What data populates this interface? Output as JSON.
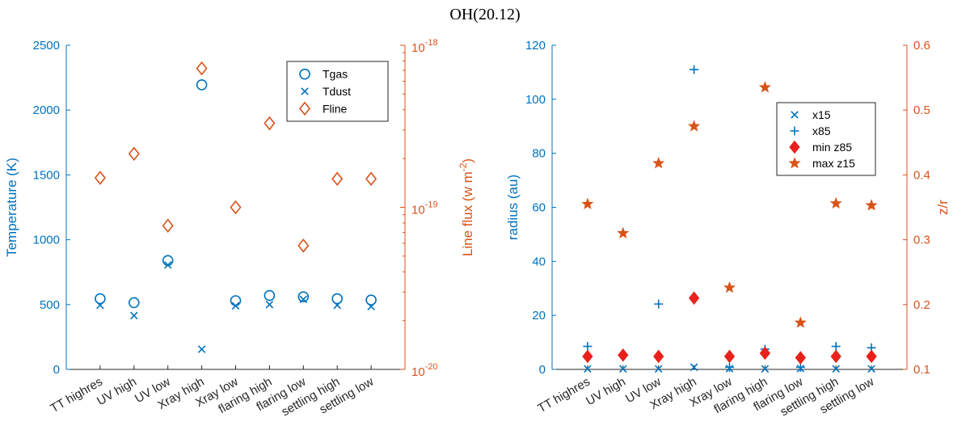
{
  "figure_title": "OH(20.12)",
  "colors": {
    "blue": "#0072BD",
    "orange": "#D95319",
    "red": "#E8221B",
    "axis": "#262626"
  },
  "chart_data": [
    {
      "type": "scatter",
      "categories": [
        "TT highres",
        "UV high",
        "UV low",
        "Xray high",
        "Xray low",
        "flaring high",
        "flaring low",
        "settling high",
        "settling low"
      ],
      "left_axis": {
        "label": "Temperature (K)",
        "lim": [
          0,
          2500
        ],
        "ticks": [
          0,
          500,
          1000,
          1500,
          2000,
          2500
        ],
        "tick_labels": [
          "0",
          "500",
          "1000",
          "1500",
          "2000",
          "2500"
        ]
      },
      "right_axis": {
        "label_main": "Line flux (w m",
        "label_sup": "-2",
        "label_end": ")",
        "scale": "log",
        "lim": [
          1e-20,
          1e-18
        ],
        "ticks": [
          1e-20,
          1e-19,
          1e-18
        ],
        "tick_base": [
          "10",
          "10",
          "10"
        ],
        "tick_exp": [
          "-20",
          "-19",
          "-18"
        ]
      },
      "series": [
        {
          "name": "Tgas",
          "axis": "left",
          "marker": "circle",
          "values": [
            545,
            515,
            840,
            2195,
            530,
            570,
            560,
            545,
            535
          ]
        },
        {
          "name": "Tdust",
          "axis": "left",
          "marker": "x",
          "values": [
            495,
            415,
            805,
            155,
            490,
            500,
            540,
            495,
            485
          ]
        },
        {
          "name": "Fline",
          "axis": "right",
          "marker": "diamond",
          "values": [
            1.52e-19,
            2.14e-19,
            7.7e-20,
            7.2e-19,
            1e-19,
            3.3e-19,
            5.8e-20,
            1.5e-19,
            1.5e-19
          ]
        }
      ],
      "legend_position": "top-right"
    },
    {
      "type": "scatter",
      "categories": [
        "TT highres",
        "UV high",
        "UV low",
        "Xray high",
        "Xray low",
        "flaring high",
        "flaring low",
        "settling high",
        "settling low"
      ],
      "left_axis": {
        "label": "radius (au)",
        "lim": [
          0,
          120
        ],
        "ticks": [
          0,
          20,
          40,
          60,
          80,
          100,
          120
        ],
        "tick_labels": [
          "0",
          "20",
          "40",
          "60",
          "80",
          "100",
          "120"
        ]
      },
      "right_axis": {
        "label": "z/r",
        "lim": [
          0.1,
          0.6
        ],
        "ticks": [
          0.1,
          0.2,
          0.3,
          0.4,
          0.5,
          0.6
        ],
        "tick_labels": [
          "0.1",
          "0.2",
          "0.3",
          "0.4",
          "0.5",
          "0.6"
        ]
      },
      "series": [
        {
          "name": "x15",
          "axis": "left",
          "marker": "x",
          "values": [
            0.2,
            0.2,
            0.2,
            0.8,
            0.3,
            0.2,
            0.3,
            0.2,
            0.2
          ]
        },
        {
          "name": "x85",
          "axis": "left",
          "marker": "plus",
          "values": [
            8.5,
            5.5,
            24.2,
            111,
            0.8,
            7.5,
            0.8,
            8.5,
            8.0
          ]
        },
        {
          "name": "min z85",
          "axis": "right",
          "marker": "diamond-filled",
          "values": [
            0.12,
            0.122,
            0.12,
            0.21,
            0.12,
            0.125,
            0.118,
            0.12,
            0.12
          ]
        },
        {
          "name": "max z15",
          "axis": "right",
          "marker": "star",
          "values": [
            0.355,
            0.31,
            0.418,
            0.475,
            0.226,
            0.535,
            0.172,
            0.356,
            0.353
          ]
        }
      ],
      "legend_position": "upper-right"
    }
  ]
}
